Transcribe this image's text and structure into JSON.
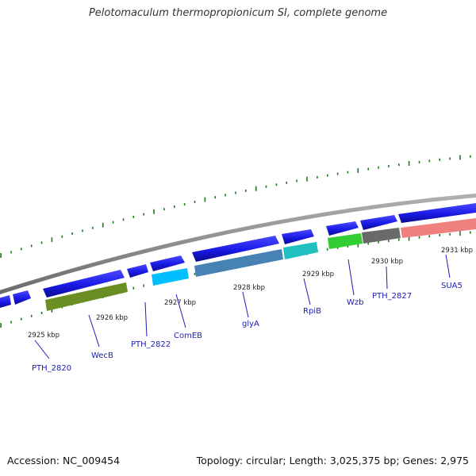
{
  "title": "Pelotomaculum thermopropionicum SI, complete genome",
  "footer": {
    "accession": "Accession: NC_009454",
    "summary": "Topology: circular; Length: 3,025,375 bp; Genes: 2,975"
  },
  "kbp_labels": [
    {
      "text": "2925 kbp",
      "pos": 2925
    },
    {
      "text": "2926 kbp",
      "pos": 2926
    },
    {
      "text": "2927 kbp",
      "pos": 2927
    },
    {
      "text": "2928 kbp",
      "pos": 2928
    },
    {
      "text": "2929 kbp",
      "pos": 2929
    },
    {
      "text": "2930 kbp",
      "pos": 2930
    },
    {
      "text": "2931 kbp",
      "pos": 2931
    }
  ],
  "genes": [
    {
      "name": "PTH_2820"
    },
    {
      "name": "WecB"
    },
    {
      "name": "PTH_2822"
    },
    {
      "name": "ComEB"
    },
    {
      "name": "glyA"
    },
    {
      "name": "RpiB"
    },
    {
      "name": "Wzb"
    },
    {
      "name": "PTH_2827"
    },
    {
      "name": "SUA5"
    }
  ],
  "colors": {
    "cds": "#1a1ae6",
    "backbone": "#8c8c8c",
    "ticks": "#1a7a1a",
    "label": "#1c1cb4",
    "wecb": "#6b8e23",
    "comeb": "#00bfff",
    "glya": "#4682b4",
    "rpib": "#20c0c0",
    "wzb": "#32cd32",
    "pth2827": "#696969",
    "sua5": "#f08080"
  }
}
